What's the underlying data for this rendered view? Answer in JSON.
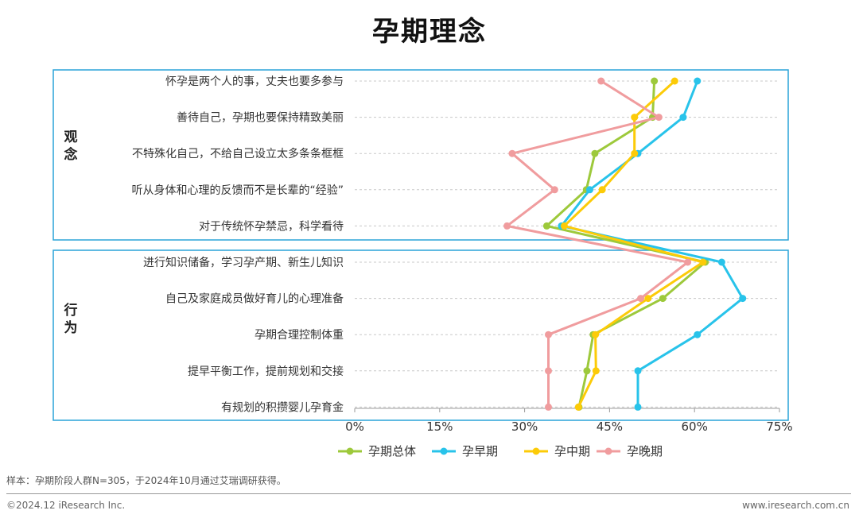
{
  "page_title": "孕期理念",
  "footer": {
    "note": "样本：孕期阶段人群N=305，于2024年10月通过艾瑞调研获得。",
    "copyright": "©2024.12 iResearch Inc.",
    "website": "www.iresearch.com.cn"
  },
  "chart_data": {
    "type": "line",
    "orientation": "horizontal",
    "title": "孕期理念",
    "groups": [
      {
        "label": "观念",
        "categories": [
          "怀孕是两个人的事，丈夫也要多参与",
          "善待自己，孕期也要保持精致美丽",
          "不特殊化自己，不给自己设立太多条条框框",
          "听从身体和心理的反馈而不是长辈的“经验”",
          "对于传统怀孕禁忌，科学看待"
        ]
      },
      {
        "label": "行为",
        "categories": [
          "进行知识储备，学习孕产期、新生儿知识",
          "自己及家庭成员做好育儿的心理准备",
          "孕期合理控制体重",
          "提早平衡工作，提前规划和交接",
          "有规划的积攒婴儿孕育金"
        ]
      }
    ],
    "categories": [
      "怀孕是两个人的事，丈夫也要多参与",
      "善待自己，孕期也要保持精致美丽",
      "不特殊化自己，不给自己设立太多条条框框",
      "听从身体和心理的反馈而不是长辈的“经验”",
      "对于传统怀孕禁忌，科学看待",
      "进行知识储备，学习孕产期、新生儿知识",
      "自己及家庭成员做好育儿的心理准备",
      "孕期合理控制体重",
      "提早平衡工作，提前规划和交接",
      "有规划的积攒婴儿孕育金"
    ],
    "xlim": [
      0,
      75
    ],
    "xticks": [
      0,
      15,
      30,
      45,
      60,
      75
    ],
    "xtick_labels": [
      "0%",
      "15%",
      "30%",
      "45%",
      "60%",
      "75%"
    ],
    "grid": true,
    "legend_position": "bottom",
    "series": [
      {
        "name": "孕期总体",
        "color": "#9DC93B",
        "values": [
          52.9,
          52.6,
          42.4,
          40.9,
          33.9,
          61.9,
          54.4,
          42.1,
          41.0,
          39.6
        ]
      },
      {
        "name": "孕早期",
        "color": "#28C3EA",
        "values": [
          60.5,
          58.0,
          50.0,
          41.5,
          36.5,
          64.8,
          68.5,
          60.5,
          50.0,
          50.0
        ]
      },
      {
        "name": "孕中期",
        "color": "#FCCB08",
        "values": [
          56.5,
          49.4,
          49.4,
          43.7,
          37.0,
          61.5,
          51.8,
          42.5,
          42.6,
          39.5
        ]
      },
      {
        "name": "孕晚期",
        "color": "#F09C9E",
        "values": [
          43.5,
          53.7,
          27.8,
          35.3,
          26.9,
          58.8,
          50.5,
          34.2,
          34.2,
          34.2
        ]
      }
    ]
  }
}
